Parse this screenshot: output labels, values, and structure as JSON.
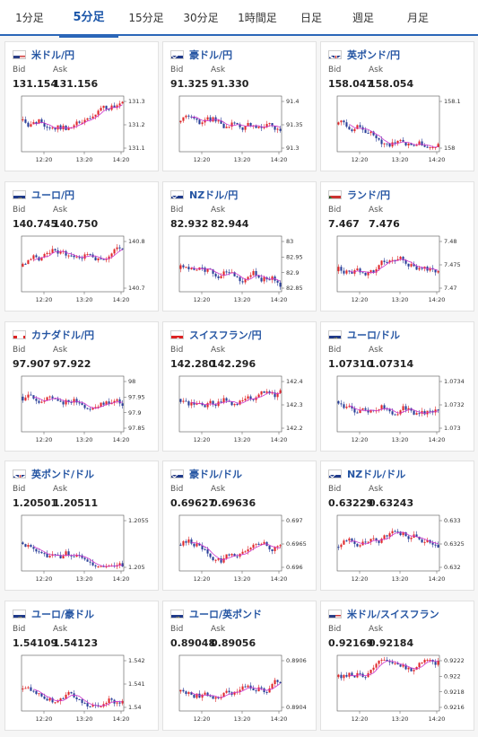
{
  "tabs": [
    {
      "label": "1分足",
      "active": false
    },
    {
      "label": "5分足",
      "active": true
    },
    {
      "label": "15分足",
      "active": false
    },
    {
      "label": "30分足",
      "active": false
    },
    {
      "label": "1時間足",
      "active": false
    },
    {
      "label": "日足",
      "active": false
    },
    {
      "label": "週足",
      "active": false
    },
    {
      "label": "月足",
      "active": false
    }
  ],
  "labels": {
    "bid": "Bid",
    "ask": "Ask"
  },
  "x_ticks": [
    "12:20",
    "13:20",
    "14:20"
  ],
  "pairs": [
    {
      "name": "米ドル/円",
      "flag": "us-jp-flag",
      "bid": "131.154",
      "ask": "131.156",
      "y_ticks": [
        "131.3",
        "131.2",
        "131.1"
      ]
    },
    {
      "name": "豪ドル/円",
      "flag": "au-jp-flag",
      "bid": "91.325",
      "ask": "91.330",
      "y_ticks": [
        "91.4",
        "91.35",
        "91.3"
      ]
    },
    {
      "name": "英ポンド/円",
      "flag": "gb-jp-flag",
      "bid": "158.047",
      "ask": "158.054",
      "y_ticks": [
        "158.1",
        "158"
      ]
    },
    {
      "name": "ユーロ/円",
      "flag": "eu-jp-flag",
      "bid": "140.745",
      "ask": "140.750",
      "y_ticks": [
        "140.8",
        "140.7"
      ]
    },
    {
      "name": "NZドル/円",
      "flag": "nz-jp-flag",
      "bid": "82.932",
      "ask": "82.944",
      "y_ticks": [
        "83",
        "82.95",
        "82.9",
        "82.85"
      ]
    },
    {
      "name": "ランド/円",
      "flag": "za-jp-flag",
      "bid": "7.467",
      "ask": "7.476",
      "y_ticks": [
        "7.48",
        "7.475",
        "7.47"
      ]
    },
    {
      "name": "カナダドル/円",
      "flag": "ca-jp-flag",
      "bid": "97.907",
      "ask": "97.922",
      "y_ticks": [
        "98",
        "97.95",
        "97.9",
        "97.85"
      ]
    },
    {
      "name": "スイスフラン/円",
      "flag": "ch-jp-flag",
      "bid": "142.280",
      "ask": "142.296",
      "y_ticks": [
        "142.4",
        "142.3",
        "142.2"
      ]
    },
    {
      "name": "ユーロ/ドル",
      "flag": "eu-us-flag",
      "bid": "1.07310",
      "ask": "1.07314",
      "y_ticks": [
        "1.0734",
        "1.0732",
        "1.073"
      ]
    },
    {
      "name": "英ポンド/ドル",
      "flag": "gb-us-flag",
      "bid": "1.20501",
      "ask": "1.20511",
      "y_ticks": [
        "1.2055",
        "1.205"
      ]
    },
    {
      "name": "豪ドル/ドル",
      "flag": "au-us-flag",
      "bid": "0.69627",
      "ask": "0.69636",
      "y_ticks": [
        "0.697",
        "0.6965",
        "0.696"
      ]
    },
    {
      "name": "NZドル/ドル",
      "flag": "nz-us-flag",
      "bid": "0.63229",
      "ask": "0.63243",
      "y_ticks": [
        "0.633",
        "0.6325",
        "0.632"
      ]
    },
    {
      "name": "ユーロ/豪ドル",
      "flag": "eu-au-flag",
      "bid": "1.54109",
      "ask": "1.54123",
      "y_ticks": [
        "1.542",
        "1.541",
        "1.54"
      ]
    },
    {
      "name": "ユーロ/英ポンド",
      "flag": "eu-gb-flag",
      "bid": "0.89048",
      "ask": "0.89056",
      "y_ticks": [
        "0.8906",
        "0.8904"
      ]
    },
    {
      "name": "米ドル/スイスフラン",
      "flag": "us-ch-flag",
      "bid": "0.92169",
      "ask": "0.92184",
      "y_ticks": [
        "0.9222",
        "0.922",
        "0.9218",
        "0.9216"
      ]
    }
  ],
  "colors": {
    "up": "#e0282b",
    "down": "#2a3f99",
    "ma": "#cc33cc",
    "axis": "#555555",
    "accent": "#2a66b8"
  }
}
